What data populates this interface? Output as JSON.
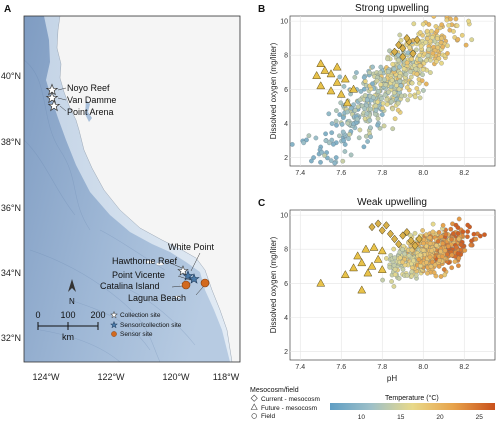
{
  "panels": {
    "a": "A",
    "b": "B",
    "c": "C"
  },
  "map": {
    "lat_labels": [
      "40°N",
      "38°N",
      "36°N",
      "34°N",
      "32°N"
    ],
    "lon_labels": [
      "124°W",
      "122°W",
      "120°W",
      "118°W"
    ],
    "sites": [
      {
        "name": "Noyo Reef",
        "kind": "collection"
      },
      {
        "name": "Van Damme",
        "kind": "collection"
      },
      {
        "name": "Point Arena",
        "kind": "collection"
      },
      {
        "name": "White Point",
        "kind": "sensor-collection"
      },
      {
        "name": "Hawthorne Reef",
        "kind": "collection"
      },
      {
        "name": "Point Vicente",
        "kind": "sensor-collection"
      },
      {
        "name": "Catalina Island",
        "kind": "sensor"
      },
      {
        "name": "Laguna Beach",
        "kind": "sensor"
      }
    ],
    "north": "N",
    "scale_ticks": [
      "0",
      "100",
      "200"
    ],
    "scale_unit": "km",
    "legend": [
      "Collection site",
      "Sensor/collection site",
      "Sensor site"
    ]
  },
  "chart_data": [
    {
      "type": "scatter",
      "title": "Strong upwelling",
      "xlabel": "",
      "ylabel": "Dissolved oxygen (mg/liter)",
      "xlim": [
        7.35,
        8.35
      ],
      "ylim": [
        1.5,
        10.3
      ],
      "xticks": [
        "7.4",
        "7.6",
        "7.8",
        "8.0",
        "8.2"
      ],
      "yticks": [
        "2",
        "4",
        "6",
        "8",
        "10"
      ],
      "field_cloud": {
        "ph_center": 7.85,
        "ph_sd": 0.17,
        "do_slope": 10.5,
        "do_intercept": -76.0,
        "do_sd": 1.0,
        "temp_min": 9,
        "temp_max": 20,
        "n": 620
      },
      "future_mesocosm": [
        [
          7.48,
          6.8
        ],
        [
          7.5,
          6.2
        ],
        [
          7.55,
          6.9
        ],
        [
          7.58,
          6.4
        ],
        [
          7.6,
          5.7
        ],
        [
          7.63,
          5.2
        ],
        [
          7.52,
          7.1
        ],
        [
          7.66,
          6.0
        ],
        [
          7.55,
          5.9
        ],
        [
          7.62,
          6.6
        ],
        [
          7.5,
          7.5
        ],
        [
          7.58,
          7.3
        ]
      ],
      "current_mesocosm": [
        [
          7.9,
          8.4
        ],
        [
          7.93,
          8.8
        ],
        [
          7.95,
          8.1
        ],
        [
          7.88,
          8.6
        ],
        [
          7.97,
          8.9
        ],
        [
          7.9,
          7.9
        ],
        [
          7.92,
          9.0
        ],
        [
          7.86,
          8.2
        ]
      ]
    },
    {
      "type": "scatter",
      "title": "Weak upwelling",
      "xlabel": "pH",
      "ylabel": "Dissolved oxygen (mg/liter)",
      "xlim": [
        7.35,
        8.35
      ],
      "ylim": [
        1.5,
        10.3
      ],
      "xticks": [
        "7.4",
        "7.6",
        "7.8",
        "8.0",
        "8.2"
      ],
      "yticks": [
        "2",
        "4",
        "6",
        "8",
        "10"
      ],
      "field_cloud": {
        "ph_center": 8.04,
        "ph_sd": 0.09,
        "do_slope": 4.0,
        "do_intercept": -24.3,
        "do_sd": 0.55,
        "temp_min": 14,
        "temp_max": 26,
        "n": 620
      },
      "future_mesocosm": [
        [
          7.5,
          6.0
        ],
        [
          7.62,
          6.5
        ],
        [
          7.66,
          6.9
        ],
        [
          7.7,
          7.2
        ],
        [
          7.73,
          6.6
        ],
        [
          7.68,
          7.6
        ],
        [
          7.72,
          8.0
        ],
        [
          7.75,
          7.0
        ],
        [
          7.78,
          7.4
        ],
        [
          7.8,
          6.8
        ],
        [
          7.7,
          5.6
        ],
        [
          7.76,
          8.1
        ],
        [
          7.8,
          7.9
        ]
      ],
      "current_mesocosm": [
        [
          7.75,
          9.3
        ],
        [
          7.78,
          9.5
        ],
        [
          7.8,
          9.1
        ],
        [
          7.82,
          9.4
        ],
        [
          7.84,
          8.9
        ],
        [
          7.86,
          8.6
        ],
        [
          7.88,
          8.3
        ],
        [
          7.9,
          8.8
        ],
        [
          7.92,
          9.0
        ],
        [
          7.94,
          8.5
        ],
        [
          7.96,
          8.2
        ],
        [
          7.98,
          8.6
        ]
      ]
    }
  ],
  "legend": {
    "heading": "Mesocosm/field",
    "items": [
      "Current - mesocosm",
      "Future - mesocosm",
      "Field"
    ],
    "colorbar_title": "Temperature (°C)",
    "colorbar_ticks": [
      "10",
      "15",
      "20",
      "25"
    ],
    "colorbar_range": [
      6,
      27
    ]
  },
  "colors": {
    "sea_deep": "#8aa6c8",
    "sea_shallow": "#dbe6f1",
    "land": "#f4f4f4",
    "sensor_site": "#d2691e",
    "cold": "#6fa8c9",
    "mid": "#e3d17a",
    "warm": "#cc5a1e"
  }
}
